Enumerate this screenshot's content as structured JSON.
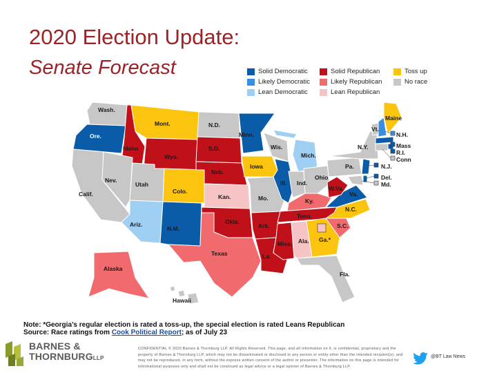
{
  "title": "2020 Election Update:",
  "subtitle": "Senate Forecast",
  "legend": [
    {
      "label": "Solid Democratic",
      "color": "#0b5ca8"
    },
    {
      "label": "Likely Democratic",
      "color": "#3a8ee0"
    },
    {
      "label": "Lean Democratic",
      "color": "#9fd0f3"
    },
    {
      "label": "Solid Republican",
      "color": "#c0101a"
    },
    {
      "label": "Likely Republican",
      "color": "#f06a6e"
    },
    {
      "label": "Lean Republican",
      "color": "#f7c4c6"
    },
    {
      "label": "Toss up",
      "color": "#fbc40e"
    },
    {
      "label": "No race",
      "color": "#c7c7c7"
    }
  ],
  "states": {
    "wash": "Wash.",
    "ore": "Ore.",
    "calif": "Calif.",
    "idaho": "Idaho",
    "nev": "Nev.",
    "mont": "Mont.",
    "wyo": "Wyo.",
    "utah": "Utah",
    "ariz": "Ariz.",
    "colo": "Colo.",
    "nm": "N.M.",
    "nd": "N.D.",
    "sd": "S.D.",
    "neb": "Neb.",
    "kan": "Kan.",
    "okla": "Okla.",
    "texas": "Texas",
    "minn": "Minn.",
    "iowa": "Iowa",
    "mo": "Mo.",
    "ark": "Ark.",
    "la": "La.",
    "wis": "Wis.",
    "ill": "Ill.",
    "mich": "Mich.",
    "ind": "Ind.",
    "ohio": "Ohio",
    "ky": "Ky.",
    "tenn": "Tenn.",
    "miss": "Miss.",
    "ala": "Ala.",
    "ga": "Ga.*",
    "fla": "Fla.",
    "sc": "S.C.",
    "nc": "N.C.",
    "va": "Va.",
    "wva": "W.Va.",
    "pa": "Pa.",
    "ny": "N.Y.",
    "vt": "Vt.",
    "nh": "N.H.",
    "maine": "Maine",
    "mass": "Mass.",
    "ri": "R.I.",
    "conn": "Conn.",
    "nj": "N.J.",
    "del": "Del.",
    "md": "Md.",
    "alaska": "Alaska",
    "hawaii": "Hawaii"
  },
  "note": {
    "line1": "Note: *Georgia’s regular election is rated a toss-up, the special election is rated Leans Republican",
    "line2_prefix": "Source: Race ratings from ",
    "link": "Cook Political Report",
    "line2_suffix": "; as of July 23"
  },
  "logo": {
    "line1": "BARNES &",
    "line2": "THORNBURG",
    "llp": "LLP"
  },
  "confidential": "CONFIDENTIAL © 2020 Barnes & Thornburg LLP. All Rights Reserved. This page, and all information on it, is confidential, proprietary and the property of Barnes & Thornburg LLP, which may not be disseminated or disclosed to any person or entity other than the intended recipient(s), and may not be reproduced, in any form, without the express written consent of the author or presenter. The information on this page is intended for informational purposes only and shall not be construed as legal advice or a legal opinion of Barnes & Thornburg LLP.",
  "twitter_handle": "@BT Law News"
}
